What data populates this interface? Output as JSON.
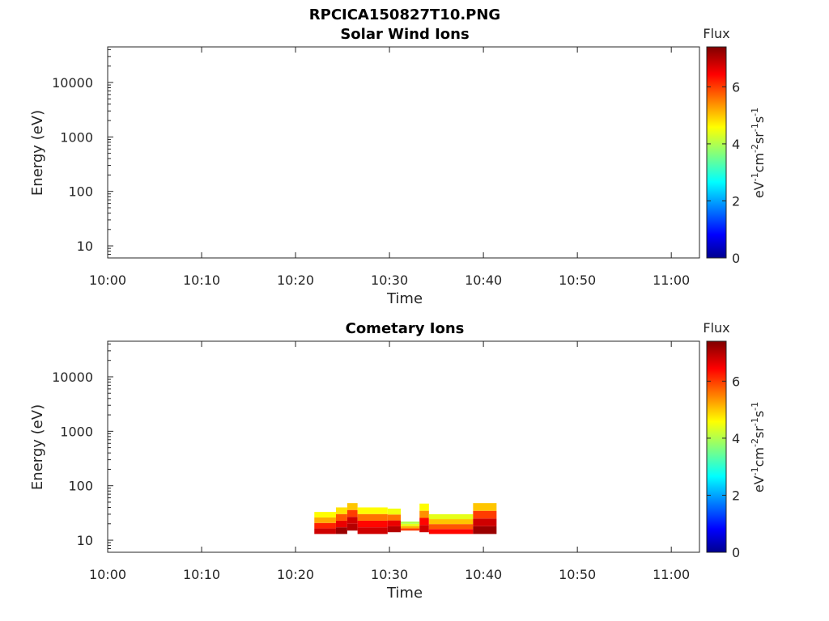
{
  "figure_title": "RPCICA150827T10.PNG",
  "colors": {
    "colormap": [
      "#00008f",
      "#0000ff",
      "#00ffff",
      "#ffff00",
      "#ff0000",
      "#800000"
    ],
    "axis": "#262626"
  },
  "chart_data": [
    {
      "type": "heatmap",
      "title": "Solar Wind Ions",
      "xlabel": "Time",
      "ylabel": "Energy (eV)",
      "x_tick_labels": [
        "10:00",
        "10:10",
        "10:20",
        "10:30",
        "10:40",
        "10:50",
        "11:00"
      ],
      "x_tick_minutes": [
        0,
        10,
        20,
        30,
        40,
        50,
        60
      ],
      "xlim_minutes": [
        0,
        63
      ],
      "y_scale": "log",
      "ylim": [
        6,
        45000
      ],
      "y_tick_labels": [
        "10",
        "100",
        "1000",
        "10000"
      ],
      "y_tick_values": [
        10,
        100,
        1000,
        10000
      ],
      "colorbar": {
        "label": "Flux",
        "unit": "eV-1cm-2sr-1s-1",
        "ticks": [
          "0",
          "2",
          "4",
          "6"
        ],
        "range": [
          0,
          7.4
        ]
      },
      "cells": []
    },
    {
      "type": "heatmap",
      "title": "Cometary Ions",
      "xlabel": "Time",
      "ylabel": "Energy (eV)",
      "x_tick_labels": [
        "10:00",
        "10:10",
        "10:20",
        "10:30",
        "10:40",
        "10:50",
        "11:00"
      ],
      "x_tick_minutes": [
        0,
        10,
        20,
        30,
        40,
        50,
        60
      ],
      "xlim_minutes": [
        0,
        63
      ],
      "y_scale": "log",
      "ylim": [
        6,
        45000
      ],
      "y_tick_labels": [
        "10",
        "100",
        "1000",
        "10000"
      ],
      "y_tick_values": [
        10,
        100,
        1000,
        10000
      ],
      "colorbar": {
        "label": "Flux",
        "unit": "eV-1cm-2sr-1s-1",
        "ticks": [
          "0",
          "2",
          "4",
          "6"
        ],
        "range": [
          0,
          7.4
        ]
      },
      "segments_note": "",
      "bands": [
        {
          "t0": 22.0,
          "t1": 24.3,
          "e_lo": 13,
          "e_hi": 33,
          "levels": [
            6.8,
            6.2,
            5.2,
            4.6
          ]
        },
        {
          "t0": 24.3,
          "t1": 25.5,
          "e_lo": 13,
          "e_hi": 40,
          "levels": [
            7.2,
            6.6,
            5.8,
            4.8
          ]
        },
        {
          "t0": 25.5,
          "t1": 26.6,
          "e_lo": 15,
          "e_hi": 48,
          "levels": [
            7.0,
            6.8,
            6.0,
            5.0
          ]
        },
        {
          "t0": 26.6,
          "t1": 29.8,
          "e_lo": 13,
          "e_hi": 40,
          "levels": [
            6.8,
            6.4,
            5.6,
            4.6
          ]
        },
        {
          "t0": 29.8,
          "t1": 31.2,
          "e_lo": 14,
          "e_hi": 38,
          "levels": [
            7.0,
            6.6,
            5.6,
            4.5
          ]
        },
        {
          "t0": 31.2,
          "t1": 33.2,
          "e_lo": 15,
          "e_hi": 22,
          "levels": [
            6.0,
            5.2,
            4.4,
            4.0
          ]
        },
        {
          "t0": 33.2,
          "t1": 34.2,
          "e_lo": 14,
          "e_hi": 47,
          "levels": [
            6.8,
            6.4,
            5.4,
            4.6
          ]
        },
        {
          "t0": 34.2,
          "t1": 38.9,
          "e_lo": 13,
          "e_hi": 30,
          "levels": [
            6.4,
            5.8,
            5.0,
            4.4
          ]
        },
        {
          "t0": 38.9,
          "t1": 41.4,
          "e_lo": 13,
          "e_hi": 48,
          "levels": [
            7.2,
            6.8,
            6.0,
            5.0
          ]
        }
      ]
    }
  ]
}
